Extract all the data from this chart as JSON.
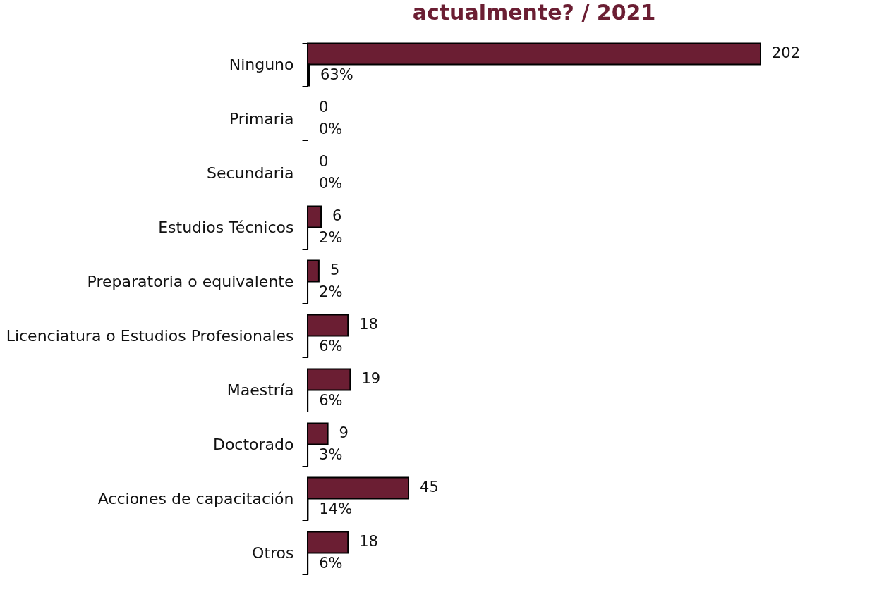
{
  "chart_data": {
    "type": "bar",
    "orientation": "horizontal",
    "title": "actualmente? / 2021",
    "tick_labels": "y",
    "data_labels": true,
    "legend": false,
    "categories": [
      "Ninguno",
      "Primaria",
      "Secundaria",
      "Estudios Técnicos",
      "Preparatoria o equivalente",
      "Licenciatura o Estudios Profesionales",
      "Maestría",
      "Doctorado",
      "Acciones de capacitación",
      "Otros"
    ],
    "series": [
      {
        "color": "#6b1e33",
        "values": [
          202,
          0,
          0,
          6,
          5,
          18,
          19,
          9,
          45,
          18
        ]
      },
      {
        "color": "#000000",
        "values": [
          0.63,
          0,
          0,
          0.02,
          0.02,
          0.06,
          0.06,
          0.03,
          0.14,
          0.06
        ],
        "value_labels": [
          "63%",
          "0%",
          "0%",
          "2%",
          "2%",
          "6%",
          "6%",
          "3%",
          "14%",
          "6%"
        ]
      }
    ]
  }
}
